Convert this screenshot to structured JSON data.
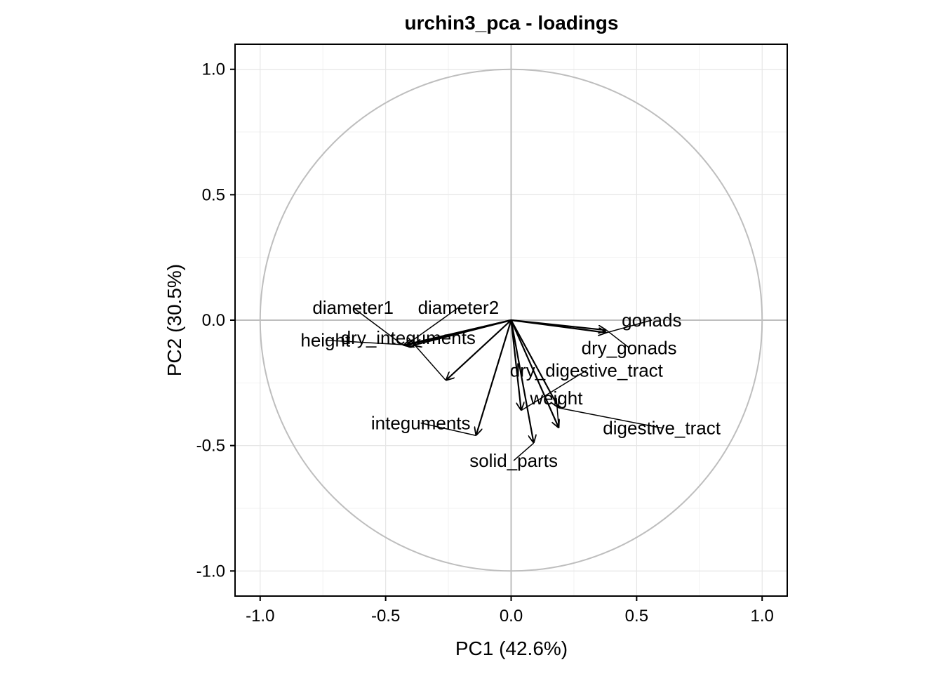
{
  "chart_data": {
    "type": "scatter",
    "subtype": "pca-loadings-biplot",
    "title": "urchin3_pca - loadings",
    "xlabel": "PC1 (42.6%)",
    "ylabel": "PC2 (30.5%)",
    "xlim": [
      -1.1,
      1.1
    ],
    "ylim": [
      -1.1,
      1.1
    ],
    "xticks": [
      -1.0,
      -0.5,
      0.0,
      0.5,
      1.0
    ],
    "xtick_labels": [
      "-1.0",
      "-0.5",
      "0.0",
      "0.5",
      "1.0"
    ],
    "yticks": [
      -1.0,
      -0.5,
      0.0,
      0.5,
      1.0
    ],
    "ytick_labels": [
      "-1.0",
      "-0.5",
      "0.0",
      "0.5",
      "1.0"
    ],
    "grid": true,
    "unit_circle": true,
    "loadings": [
      {
        "name": "gonads",
        "x": 0.38,
        "y": -0.05,
        "label_x": 0.56,
        "label_y": 0.0
      },
      {
        "name": "dry_gonads",
        "x": 0.38,
        "y": -0.04,
        "label_x": 0.47,
        "label_y": -0.11
      },
      {
        "name": "dry_digestive_tract",
        "x": 0.04,
        "y": -0.36,
        "label_x": 0.3,
        "label_y": -0.2
      },
      {
        "name": "weight",
        "x": 0.19,
        "y": -0.43,
        "label_x": 0.18,
        "label_y": -0.31
      },
      {
        "name": "digestive_tract",
        "x": 0.19,
        "y": -0.35,
        "label_x": 0.6,
        "label_y": -0.43
      },
      {
        "name": "solid_parts",
        "x": 0.09,
        "y": -0.49,
        "label_x": 0.01,
        "label_y": -0.56
      },
      {
        "name": "integuments",
        "x": -0.14,
        "y": -0.46,
        "label_x": -0.36,
        "label_y": -0.41
      },
      {
        "name": "dry_integuments",
        "x": -0.26,
        "y": -0.24,
        "label_x": -0.41,
        "label_y": -0.07
      },
      {
        "name": "diameter1",
        "x": -0.43,
        "y": -0.1,
        "label_x": -0.63,
        "label_y": 0.05
      },
      {
        "name": "diameter2",
        "x": -0.42,
        "y": -0.1,
        "label_x": -0.21,
        "label_y": 0.05
      },
      {
        "name": "height",
        "x": -0.39,
        "y": -0.1,
        "label_x": -0.74,
        "label_y": -0.08
      }
    ]
  }
}
